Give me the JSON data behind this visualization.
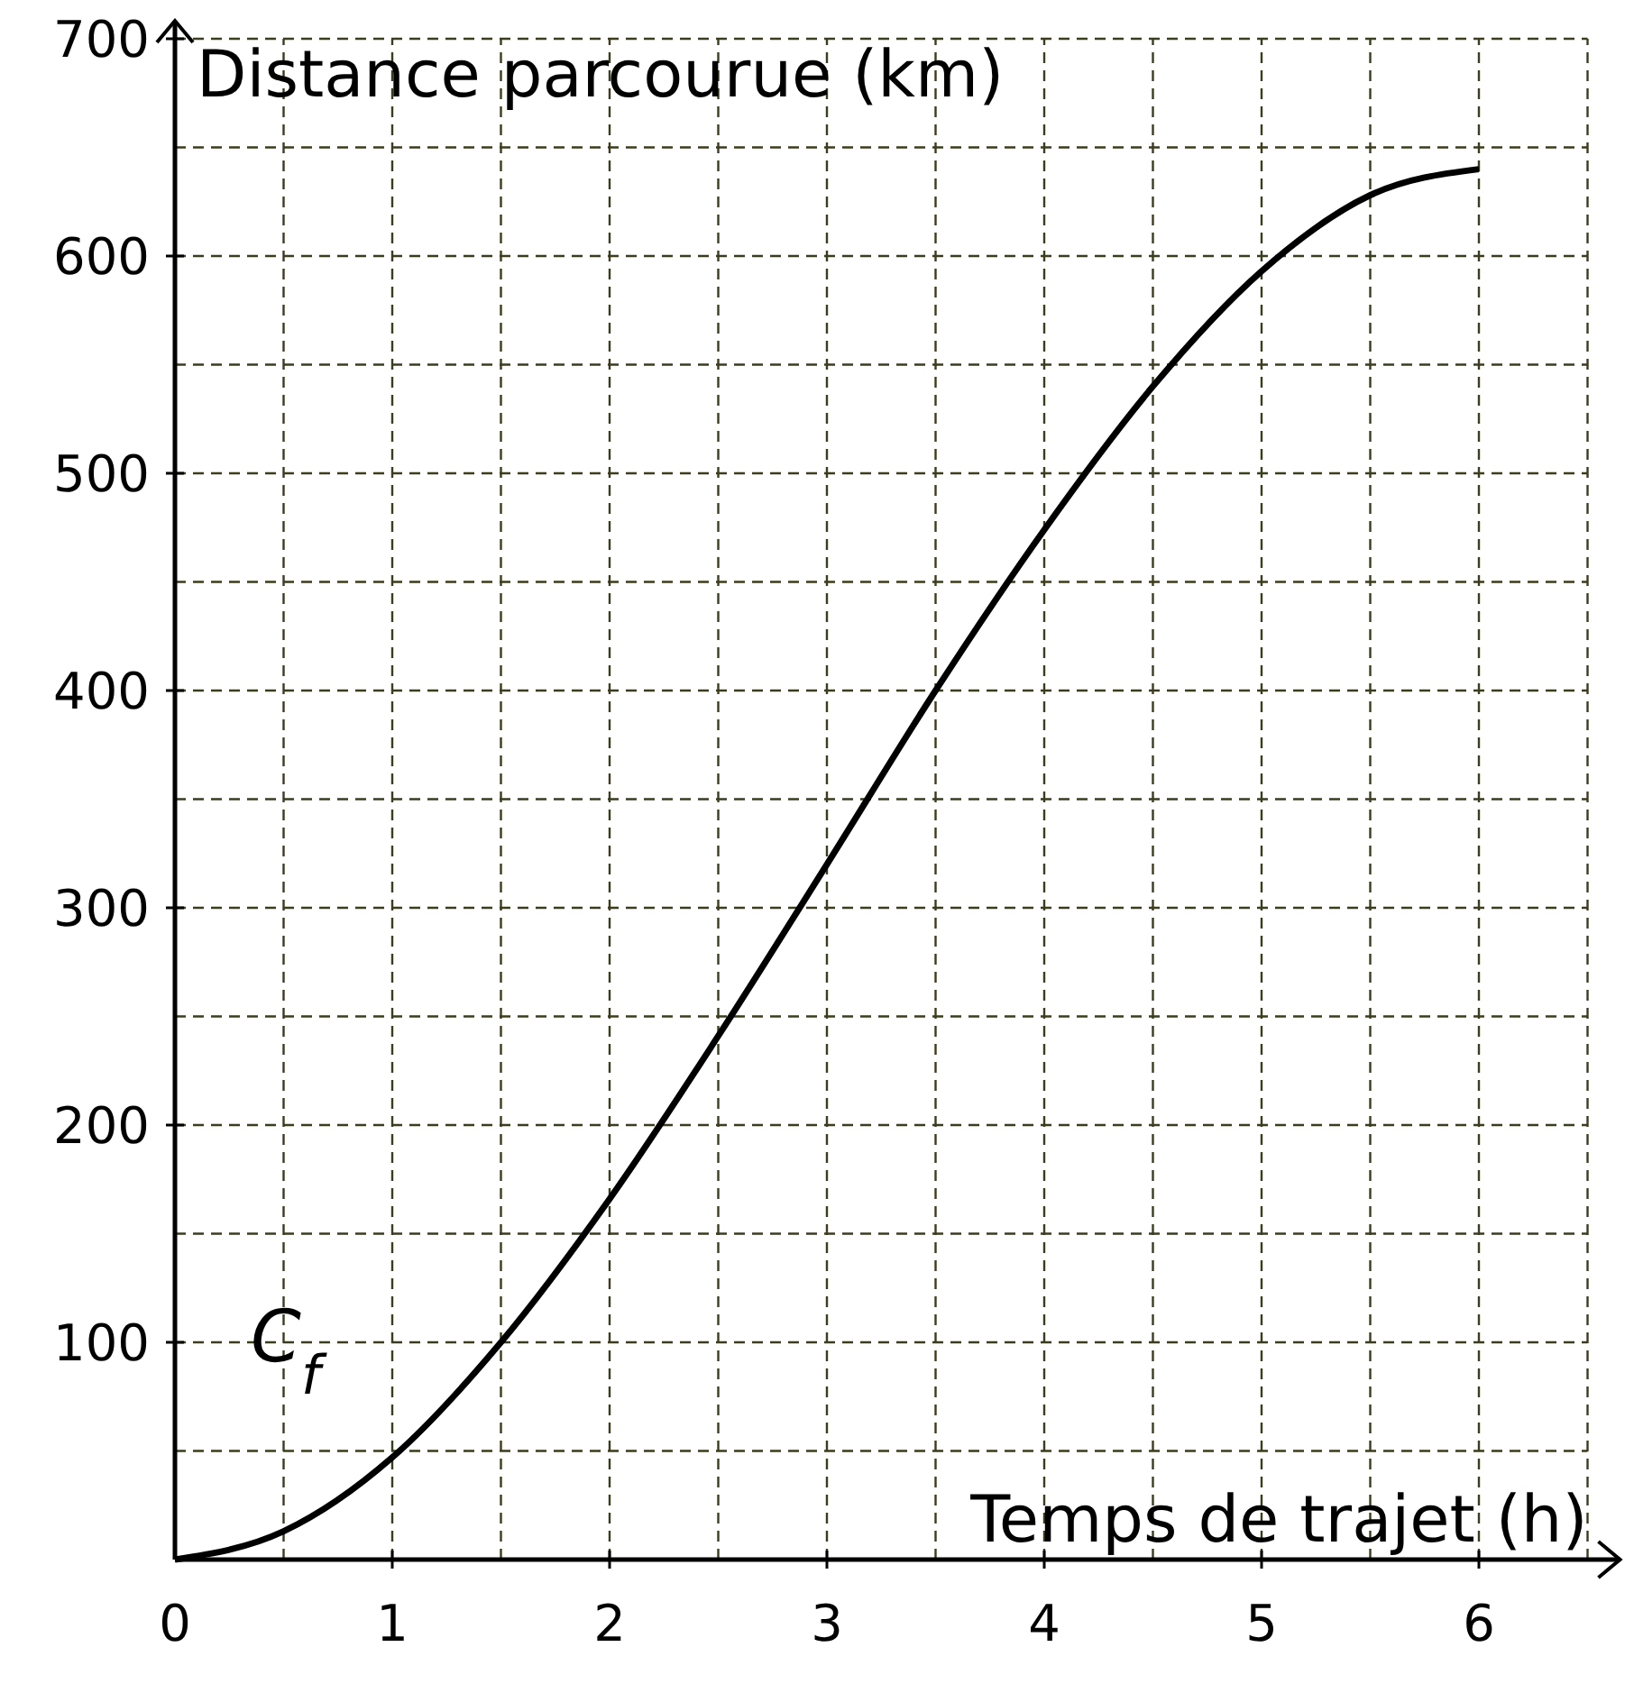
{
  "chart_data": {
    "type": "line",
    "xlabel": "Temps de trajet (h)",
    "ylabel": "Distance parcourue (km)",
    "x": [
      0,
      0.5,
      1,
      1.5,
      2,
      2.5,
      3,
      3.5,
      4,
      4.5,
      5,
      5.5,
      6
    ],
    "series": [
      {
        "color": "#000000",
        "values": [
          0,
          13,
          47,
          100,
          166,
          241,
          320,
          400,
          474,
          540,
          593,
          628,
          640
        ]
      }
    ],
    "xlim": [
      0,
      6.5
    ],
    "ylim": [
      0,
      700
    ],
    "xticks": [
      0,
      {
        "value": 0.5,
        "label": null
      },
      1,
      {
        "value": 1.5,
        "label": null
      },
      2,
      {
        "value": 2.5,
        "label": null
      },
      3,
      {
        "value": 3.5,
        "label": null
      },
      4,
      {
        "value": 4.5,
        "label": null
      },
      5,
      {
        "value": 5.5,
        "label": null
      },
      6,
      {
        "value": 6.5,
        "label": null
      }
    ],
    "yticks": [
      {
        "value": 50,
        "label": null
      },
      100,
      {
        "value": 150,
        "label": null
      },
      200,
      {
        "value": 250,
        "label": null
      },
      300,
      {
        "value": 350,
        "label": null
      },
      400,
      {
        "value": 450,
        "label": null
      },
      500,
      {
        "value": 550,
        "label": null
      },
      600,
      {
        "value": 650,
        "label": null
      },
      700
    ],
    "grid": true,
    "line_style": "solid",
    "marker": "none",
    "annotations": [
      "C$_{f}$"
    ]
  }
}
